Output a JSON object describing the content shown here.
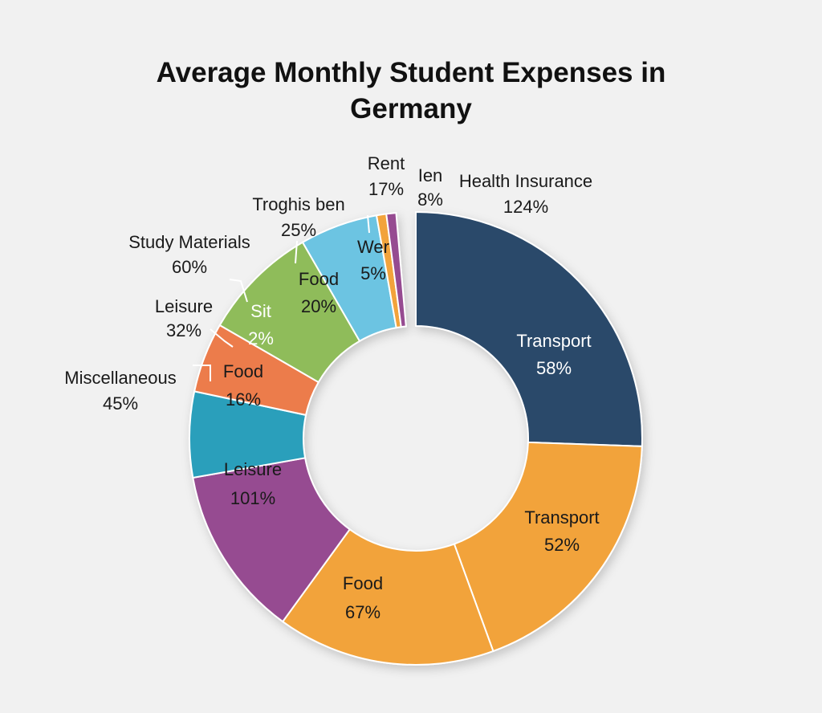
{
  "chart_data": {
    "type": "pie",
    "title_lines": [
      "Average Monthly Student Expenses in",
      "Germany"
    ],
    "slices": [
      {
        "start_deg": 0,
        "end_deg": 92,
        "color": "#2c4a6a",
        "label": "Transport",
        "value": "58%"
      },
      {
        "start_deg": 92,
        "end_deg": 160,
        "color": "#f2a33a",
        "label": "Transport",
        "value": "52%"
      },
      {
        "start_deg": 160,
        "end_deg": 216,
        "color": "#f2a33a",
        "label": "Food",
        "value": "67%"
      },
      {
        "start_deg": 216,
        "end_deg": 260,
        "color": "#964c91",
        "label": "Leisure",
        "value": "101%"
      },
      {
        "start_deg": 260,
        "end_deg": 282,
        "color": "#2c9fbb",
        "label": "Food",
        "value": "16%"
      },
      {
        "start_deg": 282,
        "end_deg": 300,
        "color": "#ec7b4b",
        "label": "Sit",
        "value": "2%"
      },
      {
        "start_deg": 300,
        "end_deg": 330,
        "color": "#8fbc5a",
        "label": "Food",
        "value": "20%"
      },
      {
        "start_deg": 330,
        "end_deg": 350,
        "color": "#6cc4e2",
        "label": "Wer",
        "value": "5%"
      },
      {
        "start_deg": 350,
        "end_deg": 352.5,
        "color": "#f2a33a",
        "label": "",
        "value": ""
      },
      {
        "start_deg": 352.5,
        "end_deg": 355,
        "color": "#964c91",
        "label": "",
        "value": ""
      }
    ],
    "callouts": [
      {
        "label": "Health Insurance",
        "value": "124%"
      },
      {
        "label": "Ien",
        "value": "8%"
      },
      {
        "label": "Rent",
        "value": "17%"
      },
      {
        "label": "Troghis ben",
        "value": "25%"
      },
      {
        "label": "Study Materials",
        "value": "60%"
      },
      {
        "label": "Leisure",
        "value": "32%"
      },
      {
        "label": "Miscellaneous",
        "value": "45%"
      }
    ]
  }
}
